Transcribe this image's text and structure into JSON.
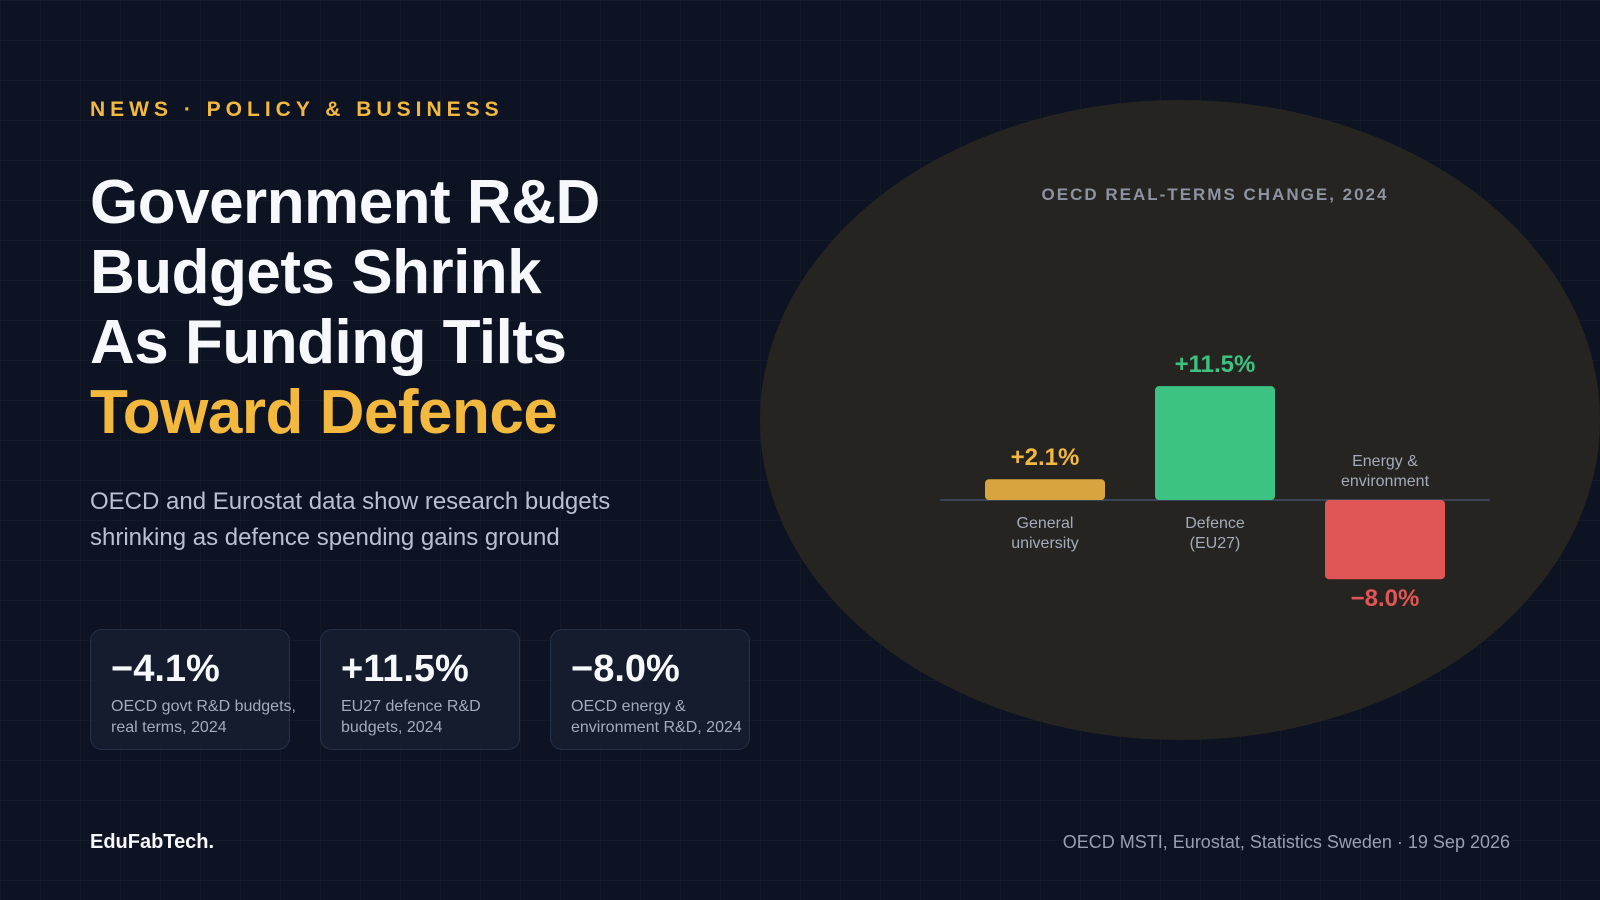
{
  "kicker": "NEWS · POLICY & BUSINESS",
  "headline": {
    "lines": [
      "Government R&D",
      "Budgets Shrink",
      "As Funding Tilts"
    ],
    "accent": "Toward Defence"
  },
  "subhead": "OECD and Eurostat data show research budgets shrinking as defence spending gains ground",
  "stats": [
    {
      "value": "−4.1%",
      "label_lines": [
        "OECD govt R&D budgets,",
        "real terms, 2024"
      ]
    },
    {
      "value": "+11.5%",
      "label_lines": [
        "EU27 defence R&D",
        "budgets, 2024"
      ]
    },
    {
      "value": "−8.0%",
      "label_lines": [
        "OECD energy &",
        "environment R&D, 2024"
      ]
    }
  ],
  "brand": "EduFabTech.",
  "source": "OECD MSTI, Eurostat, Statistics Sweden · 19 Sep 2026",
  "colors": {
    "background": "#0d1322",
    "accent": "#f3b93f",
    "positive": "#3cc383",
    "negative": "#e05555",
    "neutral_bar": "#d9a43f"
  },
  "chart_data": {
    "type": "bar",
    "title": "OECD REAL-TERMS CHANGE, 2024",
    "categories": [
      [
        "General",
        "university"
      ],
      [
        "Defence",
        "(EU27)"
      ],
      [
        "Energy &",
        "environment"
      ]
    ],
    "values": [
      2.1,
      11.5,
      -8.0
    ],
    "value_labels": [
      "+2.1%",
      "+11.5%",
      "−8.0%"
    ],
    "colors": [
      "#d9a43f",
      "#3cc383",
      "#e05555"
    ],
    "ylim": [
      -8,
      11.5
    ],
    "grid": false,
    "legend": "none"
  }
}
